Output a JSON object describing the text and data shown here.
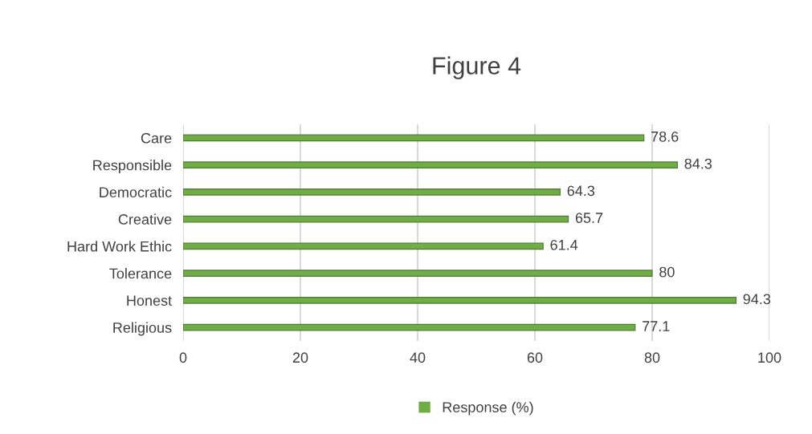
{
  "chart_data": {
    "type": "bar",
    "orientation": "horizontal",
    "title": "Figure 4",
    "categories": [
      "Care",
      "Responsible",
      "Democratic",
      "Creative",
      "Hard Work Ethic",
      "Tolerance",
      "Honest",
      "Religious"
    ],
    "series": [
      {
        "name": "Response (%)",
        "color": "#70ad47",
        "values": [
          78.6,
          84.3,
          64.3,
          65.7,
          61.4,
          80,
          94.3,
          77.1
        ]
      }
    ],
    "xlim": [
      0,
      100
    ],
    "xticks": [
      0,
      20,
      40,
      60,
      80,
      100
    ],
    "grid": "x",
    "legend": "bottom",
    "data_labels": true
  }
}
